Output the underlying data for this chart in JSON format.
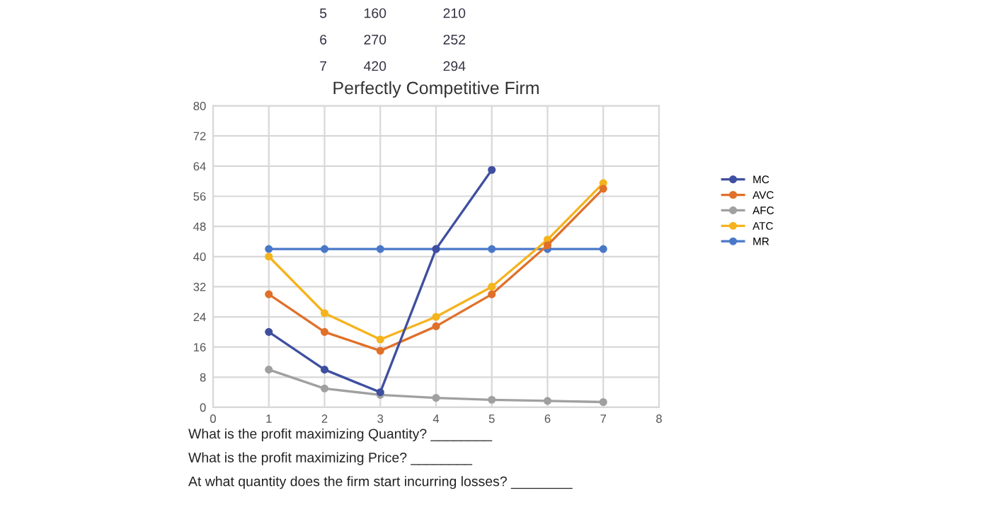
{
  "chart_data": {
    "type": "line",
    "title": "Perfectly Competitive Firm",
    "x": [
      1,
      2,
      3,
      4,
      5,
      6,
      7
    ],
    "series": [
      {
        "name": "MC",
        "color": "#3f4fa0",
        "values": [
          20,
          10,
          4,
          42,
          63,
          null,
          null
        ]
      },
      {
        "name": "AVC",
        "color": "#e0702a",
        "values": [
          30,
          20,
          15,
          21.5,
          30,
          43,
          58
        ]
      },
      {
        "name": "AFC",
        "color": "#a0a0a0",
        "values": [
          10,
          5,
          3.3,
          2.5,
          2,
          1.7,
          1.4
        ]
      },
      {
        "name": "ATC",
        "color": "#f5b31e",
        "values": [
          40,
          25,
          18,
          24,
          32,
          44.5,
          59.5
        ]
      },
      {
        "name": "MR",
        "color": "#4a78c8",
        "values": [
          42,
          42,
          42,
          42,
          42,
          42,
          42
        ]
      }
    ],
    "xlim": [
      0,
      8
    ],
    "xticks": [
      0,
      1,
      2,
      3,
      4,
      5,
      6,
      7,
      8
    ],
    "ylim": [
      0,
      80
    ],
    "yticks": [
      0,
      8,
      16,
      24,
      32,
      40,
      48,
      56,
      64,
      72,
      80
    ],
    "grid": true,
    "legend": "right",
    "marker": "circle",
    "line_style": "solid",
    "annotations": [
      "5",
      "160",
      "210",
      "6",
      "270",
      "252",
      "7",
      "420",
      "294",
      "What is the profit maximizing Quantity? ________",
      "What is the profit maximizing Price? ________",
      "At what quantity does the firm start incurring losses? ________"
    ]
  }
}
